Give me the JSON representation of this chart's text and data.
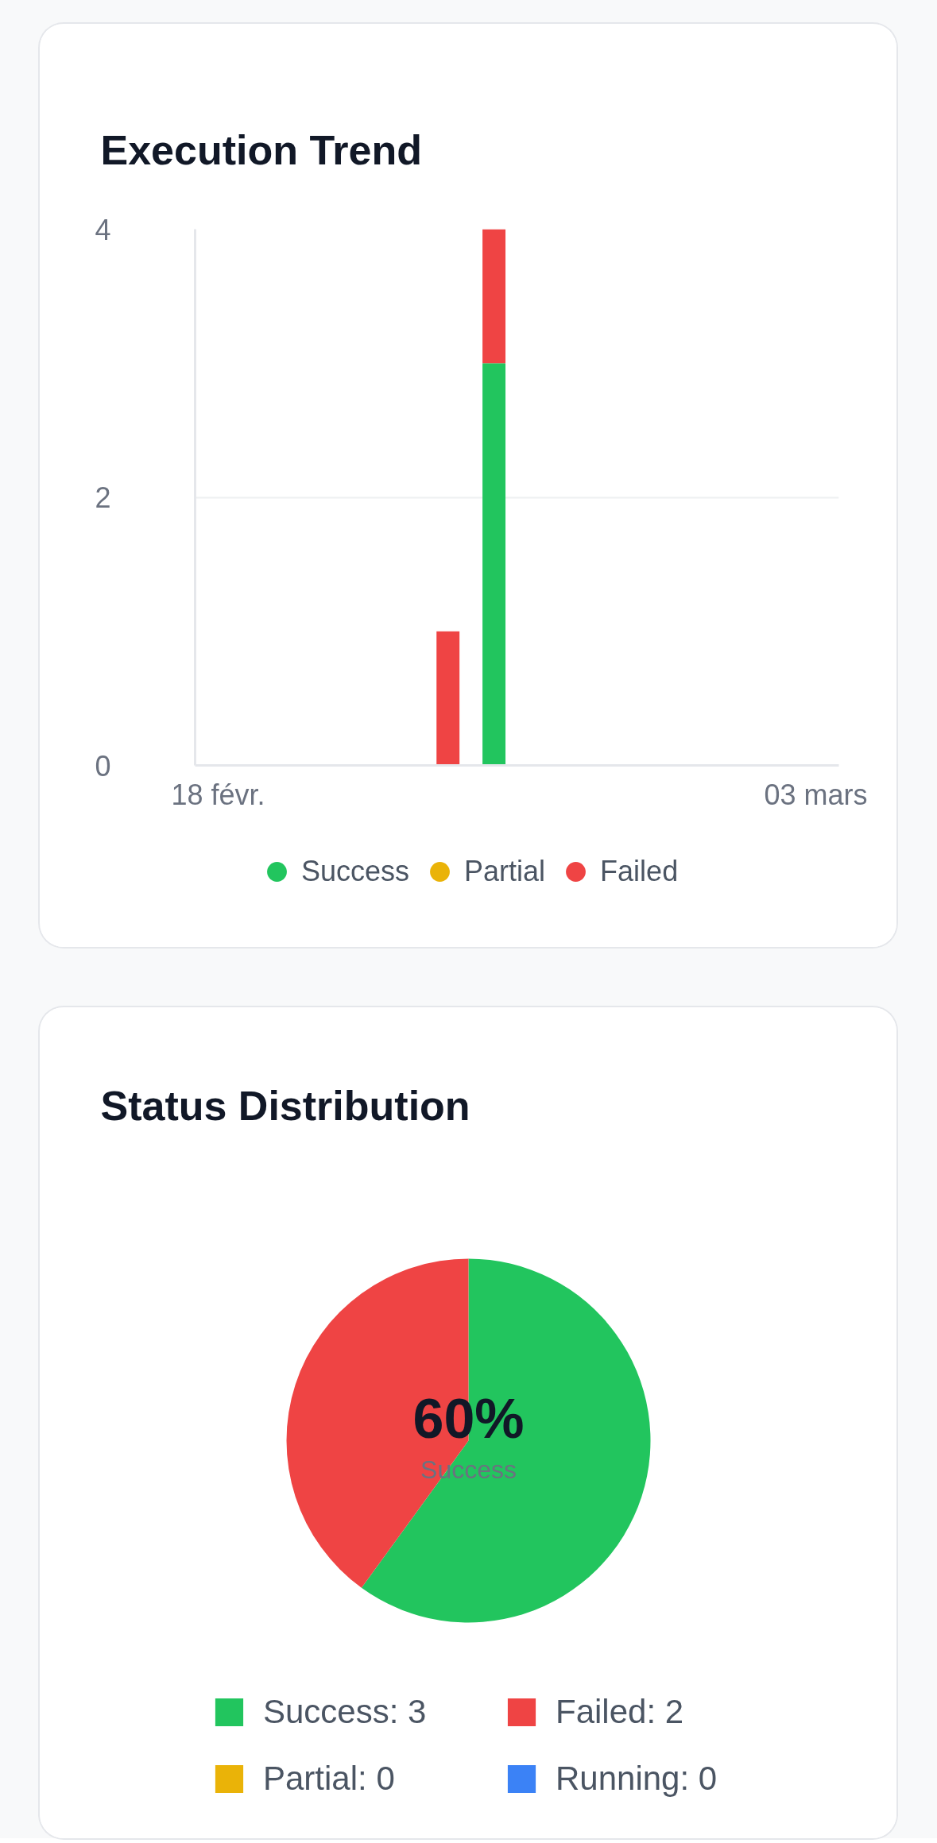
{
  "chart_data": [
    {
      "type": "bar",
      "title": "Execution Trend",
      "categories": [
        "18 févr.",
        null,
        null,
        null,
        null,
        null,
        null,
        null,
        null,
        null,
        null,
        null,
        null,
        "03 mars"
      ],
      "stacked": true,
      "series": [
        {
          "name": "Success",
          "color": "#22c55e",
          "values": [
            null,
            null,
            null,
            null,
            null,
            null,
            3,
            null,
            null,
            null,
            null,
            null,
            null,
            null
          ]
        },
        {
          "name": "Partial",
          "color": "#eab308",
          "values": [
            null,
            null,
            null,
            null,
            null,
            null,
            null,
            null,
            null,
            null,
            null,
            null,
            null,
            null
          ]
        },
        {
          "name": "Failed",
          "color": "#ef4444",
          "values": [
            null,
            null,
            null,
            null,
            null,
            1,
            1,
            null,
            null,
            null,
            null,
            null,
            null,
            null
          ]
        }
      ],
      "ylim": [
        0,
        4
      ],
      "yticks": [
        0,
        2,
        4
      ],
      "grid": "y",
      "legend": "bottom"
    },
    {
      "type": "pie",
      "title": "Status Distribution",
      "categories": [
        "Success: 3",
        "Failed: 2",
        "Partial: 0",
        "Running: 0"
      ],
      "values": [
        3,
        2,
        0,
        0
      ],
      "colors": [
        "#22c55e",
        "#ef4444",
        "#eab308",
        "#3b82f6"
      ],
      "legend": "bottom",
      "annotations": [
        "60%",
        "Success"
      ]
    }
  ]
}
